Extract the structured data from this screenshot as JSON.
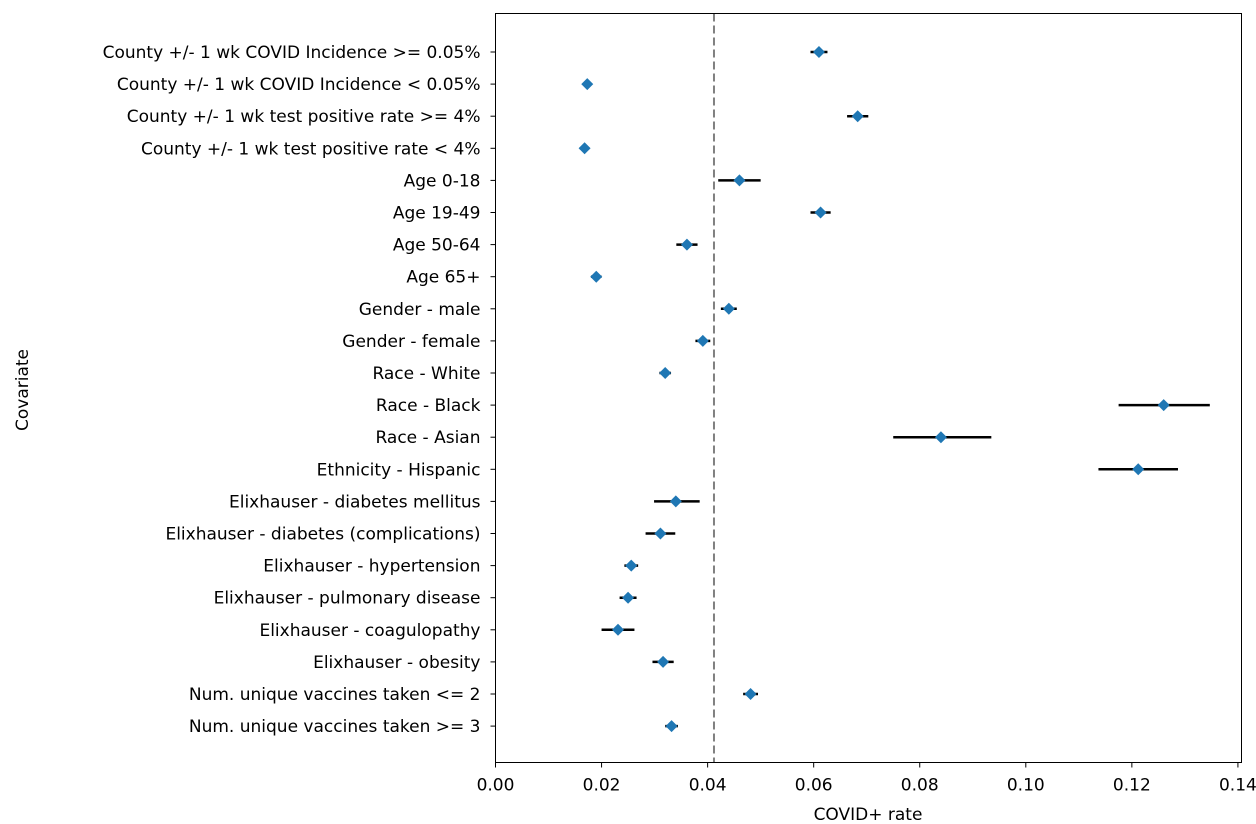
{
  "chart_data": {
    "type": "scatter",
    "subtype": "forest-plot",
    "title": "",
    "xlabel": "COVID+ rate",
    "ylabel": "Covariate",
    "xlim": [
      0.0,
      0.14
    ],
    "xticks": [
      0.0,
      0.02,
      0.04,
      0.06,
      0.08,
      0.1,
      0.12,
      0.14
    ],
    "xtick_labels": [
      "0.00",
      "0.02",
      "0.04",
      "0.06",
      "0.08",
      "0.10",
      "0.12",
      "0.14"
    ],
    "grid": false,
    "legend": "none",
    "reference_line": {
      "x": 0.0412,
      "style": "dashed",
      "color": "#808080"
    },
    "marker_color": "#1f77b4",
    "errorbar_color": "#000000",
    "categories": [
      "County +/- 1 wk COVID Incidence >= 0.05%",
      "County +/- 1 wk COVID Incidence < 0.05%",
      "County +/- 1 wk test positive rate >= 4%",
      "County +/- 1 wk test positive rate < 4%",
      "Age 0-18",
      "Age 19-49",
      "Age 50-64",
      "Age 65+",
      "Gender - male",
      "Gender - female",
      "Race - White",
      "Race - Black",
      "Race - Asian",
      "Ethnicity - Hispanic",
      "Elixhauser - diabetes mellitus",
      "Elixhauser - diabetes (complications)",
      "Elixhauser - hypertension",
      "Elixhauser - pulmonary disease",
      "Elixhauser - coagulopathy",
      "Elixhauser - obesity",
      "Num. unique vaccines taken <= 2",
      "Num. unique vaccines taken >= 3"
    ],
    "values": [
      0.061,
      0.0173,
      0.0683,
      0.0168,
      0.046,
      0.0613,
      0.0361,
      0.019,
      0.044,
      0.0391,
      0.032,
      0.126,
      0.084,
      0.1212,
      0.034,
      0.0311,
      0.0256,
      0.025,
      0.0231,
      0.0316,
      0.0481,
      0.0332
    ],
    "ci_low": [
      0.0594,
      0.0165,
      0.0663,
      0.0159,
      0.042,
      0.0594,
      0.0341,
      0.018,
      0.0425,
      0.0377,
      0.0309,
      0.1175,
      0.075,
      0.1137,
      0.0299,
      0.0283,
      0.0243,
      0.0234,
      0.02,
      0.0296,
      0.0467,
      0.032
    ],
    "ci_high": [
      0.0626,
      0.0181,
      0.0703,
      0.0177,
      0.05,
      0.0632,
      0.0381,
      0.02,
      0.0455,
      0.0405,
      0.0331,
      0.1347,
      0.0935,
      0.1287,
      0.0385,
      0.0339,
      0.0269,
      0.0266,
      0.0262,
      0.0336,
      0.0495,
      0.0344
    ]
  }
}
